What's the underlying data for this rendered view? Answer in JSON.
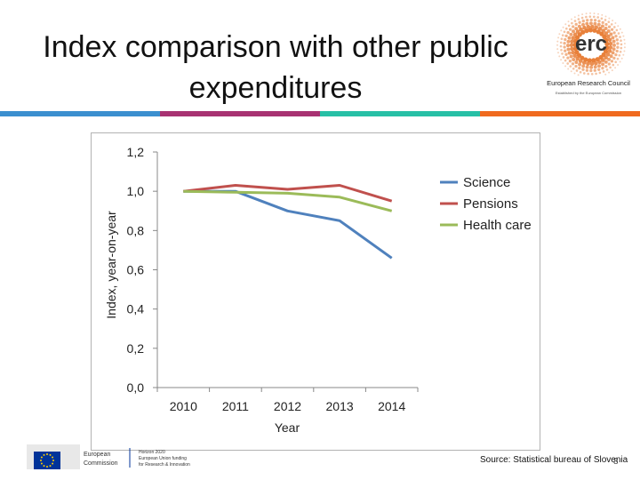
{
  "slide": {
    "title_line1": "Index comparison with other public",
    "title_line2": "expenditures",
    "source": "Source: Statistical bureau of Slovenia",
    "page_number": "8"
  },
  "color_bar": [
    "#3b8fcf",
    "#a83272",
    "#27c0a6",
    "#f06a1e"
  ],
  "logo": {
    "acronym": "erc",
    "name": "European Research Council",
    "tagline": "Established by the European Commission"
  },
  "footer": {
    "commission_line1": "European",
    "commission_line2": "Commission",
    "funding_line1": "Horizon 2020",
    "funding_line2": "European Union funding",
    "funding_line3": "for Research & Innovation"
  },
  "chart_data": {
    "type": "line",
    "x": [
      "2010",
      "2011",
      "2012",
      "2013",
      "2014"
    ],
    "series": [
      {
        "name": "Science",
        "color": "#4f81bd",
        "values": [
          1.0,
          1.0,
          0.9,
          0.85,
          0.66
        ]
      },
      {
        "name": "Pensions",
        "color": "#c0504d",
        "values": [
          1.0,
          1.03,
          1.01,
          1.03,
          0.95
        ]
      },
      {
        "name": "Health care",
        "color": "#9bbb59",
        "values": [
          1.0,
          0.995,
          0.99,
          0.97,
          0.9
        ]
      }
    ],
    "xlabel": "Year",
    "ylabel": "Index, year-on-year",
    "ylim": [
      0,
      1.2
    ],
    "yticks": [
      "0,0",
      "0,2",
      "0,4",
      "0,6",
      "0,8",
      "1,0",
      "1,2"
    ],
    "grid": false,
    "legend": "right"
  }
}
